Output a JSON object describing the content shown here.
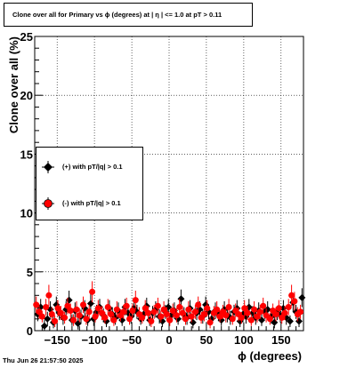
{
  "title": "Clone  over all for Primary vs ϕ (degrees) at |  η  | <= 1.0 at pT > 0.11",
  "footer": "Thu Jun 26 21:57:50 2025",
  "legend": {
    "entries": [
      {
        "label": "(+) with pT/|q| > 0.1",
        "color": "#000000"
      },
      {
        "label": "(-) with pT/|q| > 0.1",
        "color": "#ff0000"
      }
    ]
  },
  "chart_data": {
    "type": "scatter",
    "title": "Clone  over all for Primary vs ϕ (degrees) at |  η  | <= 1.0 at pT > 0.11",
    "xlabel": "ϕ (degrees)",
    "ylabel": "Clone  over all (%)",
    "xlim": [
      -180,
      180
    ],
    "ylim": [
      0,
      25
    ],
    "xticks": [
      -150,
      -100,
      -50,
      0,
      50,
      100,
      150
    ],
    "xtick_labels": [
      "−150",
      "−100",
      "−50",
      "0",
      "50",
      "100",
      "150"
    ],
    "yticks": [
      0,
      5,
      10,
      15,
      20,
      25
    ],
    "ytick_labels": [
      "0",
      "5",
      "10",
      "15",
      "20",
      "25"
    ],
    "grid": true,
    "legend_position": "left-middle",
    "series": [
      {
        "name": "(+) with pT/|q| > 0.1",
        "color": "#000000",
        "marker": "diamond",
        "x": [
          -176,
          -172,
          -167,
          -163,
          -159,
          -155,
          -151,
          -147,
          -142,
          -138,
          -134,
          -130,
          -126,
          -122,
          -118,
          -113,
          -109,
          -105,
          -101,
          -97,
          -93,
          -88,
          -84,
          -80,
          -76,
          -72,
          -68,
          -63,
          -59,
          -55,
          -51,
          -47,
          -43,
          -38,
          -34,
          -30,
          -26,
          -22,
          -18,
          -13,
          -9,
          -5,
          -1,
          3,
          7,
          12,
          16,
          20,
          24,
          28,
          32,
          37,
          41,
          45,
          49,
          53,
          57,
          62,
          66,
          70,
          74,
          78,
          82,
          87,
          91,
          95,
          99,
          103,
          107,
          112,
          116,
          120,
          124,
          128,
          132,
          137,
          141,
          145,
          149,
          153,
          157,
          162,
          166,
          170,
          174,
          178
        ],
        "y": [
          1.4,
          2.0,
          0.4,
          1.0,
          1.8,
          0.7,
          2.2,
          1.5,
          1.1,
          1.8,
          2.6,
          0.9,
          1.7,
          0.6,
          1.2,
          1.9,
          0.9,
          2.3,
          1.0,
          1.6,
          2.0,
          1.3,
          0.8,
          1.9,
          1.4,
          1.1,
          1.7,
          0.9,
          2.0,
          1.5,
          1.2,
          1.9,
          1.6,
          1.0,
          1.4,
          2.1,
          0.9,
          1.5,
          1.8,
          1.2,
          0.8,
          1.6,
          2.0,
          1.3,
          1.7,
          1.0,
          2.7,
          1.4,
          1.1,
          1.9,
          0.7,
          1.5,
          1.8,
          1.2,
          2.2,
          1.6,
          1.0,
          1.7,
          1.4,
          0.9,
          1.8,
          1.3,
          1.1,
          1.6,
          1.9,
          0.8,
          1.4,
          1.2,
          2.0,
          1.5,
          1.1,
          1.7,
          0.9,
          1.6,
          1.8,
          1.2,
          0.7,
          1.5,
          1.3,
          1.9,
          1.1,
          0.8,
          2.4,
          1.6,
          0.8,
          2.8
        ],
        "yerr": [
          0.6,
          0.7,
          0.5,
          0.6,
          0.7,
          0.5,
          0.7,
          0.6,
          0.6,
          0.7,
          0.8,
          0.5,
          0.7,
          0.5,
          0.6,
          0.7,
          0.5,
          0.8,
          0.6,
          0.6,
          0.7,
          0.6,
          0.5,
          0.7,
          0.6,
          0.6,
          0.7,
          0.5,
          0.7,
          0.6,
          0.6,
          0.7,
          0.6,
          0.5,
          0.6,
          0.7,
          0.5,
          0.6,
          0.7,
          0.6,
          0.5,
          0.6,
          0.7,
          0.6,
          0.7,
          0.5,
          0.8,
          0.6,
          0.6,
          0.7,
          0.5,
          0.6,
          0.7,
          0.6,
          0.7,
          0.6,
          0.5,
          0.7,
          0.6,
          0.5,
          0.7,
          0.6,
          0.6,
          0.6,
          0.7,
          0.5,
          0.6,
          0.6,
          0.7,
          0.6,
          0.6,
          0.7,
          0.5,
          0.6,
          0.7,
          0.6,
          0.5,
          0.6,
          0.6,
          0.7,
          0.6,
          0.5,
          0.8,
          0.6,
          0.5,
          0.8
        ]
      },
      {
        "name": "(-) with pT/|q| > 0.1",
        "color": "#ff0000",
        "marker": "circle",
        "x": [
          -178,
          -174,
          -170,
          -165,
          -161,
          -157,
          -153,
          -149,
          -145,
          -140,
          -136,
          -132,
          -128,
          -124,
          -120,
          -115,
          -111,
          -107,
          -103,
          -99,
          -95,
          -90,
          -86,
          -82,
          -78,
          -74,
          -70,
          -65,
          -61,
          -57,
          -53,
          -49,
          -45,
          -40,
          -36,
          -32,
          -28,
          -24,
          -20,
          -15,
          -11,
          -7,
          -3,
          1,
          5,
          10,
          14,
          18,
          22,
          26,
          30,
          35,
          39,
          43,
          47,
          51,
          55,
          60,
          64,
          68,
          72,
          76,
          80,
          85,
          89,
          93,
          97,
          101,
          105,
          110,
          114,
          118,
          122,
          126,
          130,
          135,
          139,
          143,
          147,
          151,
          155,
          160,
          164,
          168,
          172,
          176
        ],
        "y": [
          2.2,
          1.6,
          1.2,
          2.0,
          3.0,
          1.4,
          0.8,
          1.9,
          1.5,
          1.1,
          2.1,
          1.7,
          0.9,
          1.8,
          1.3,
          2.2,
          1.0,
          1.6,
          3.3,
          1.2,
          1.9,
          1.5,
          1.1,
          2.0,
          1.4,
          0.9,
          1.8,
          1.3,
          1.6,
          2.1,
          1.0,
          1.7,
          2.6,
          1.4,
          1.1,
          1.9,
          1.5,
          0.8,
          1.6,
          2.1,
          1.2,
          1.8,
          1.4,
          0.9,
          1.7,
          1.3,
          2.0,
          1.5,
          1.0,
          1.8,
          1.2,
          1.6,
          2.2,
          1.1,
          1.4,
          1.9,
          0.7,
          1.5,
          1.8,
          1.2,
          1.6,
          1.3,
          2.0,
          1.0,
          1.7,
          1.4,
          1.1,
          1.9,
          1.5,
          0.9,
          1.8,
          1.2,
          1.6,
          2.1,
          1.3,
          1.0,
          1.7,
          1.4,
          1.9,
          1.1,
          1.5,
          2.0,
          3.0,
          2.5,
          1.4,
          1.6
        ],
        "yerr": [
          0.7,
          0.6,
          0.5,
          0.7,
          0.9,
          0.6,
          0.5,
          0.7,
          0.6,
          0.5,
          0.7,
          0.6,
          0.5,
          0.7,
          0.6,
          0.7,
          0.5,
          0.6,
          0.9,
          0.5,
          0.7,
          0.6,
          0.5,
          0.7,
          0.6,
          0.5,
          0.7,
          0.5,
          0.6,
          0.7,
          0.5,
          0.6,
          0.8,
          0.6,
          0.5,
          0.7,
          0.6,
          0.5,
          0.6,
          0.7,
          0.5,
          0.7,
          0.6,
          0.5,
          0.6,
          0.6,
          0.7,
          0.6,
          0.5,
          0.7,
          0.5,
          0.6,
          0.7,
          0.5,
          0.6,
          0.7,
          0.5,
          0.6,
          0.7,
          0.5,
          0.6,
          0.6,
          0.7,
          0.5,
          0.6,
          0.6,
          0.5,
          0.7,
          0.6,
          0.5,
          0.7,
          0.5,
          0.6,
          0.7,
          0.6,
          0.5,
          0.6,
          0.6,
          0.7,
          0.5,
          0.6,
          0.7,
          0.9,
          0.8,
          0.6,
          0.6
        ]
      }
    ]
  }
}
